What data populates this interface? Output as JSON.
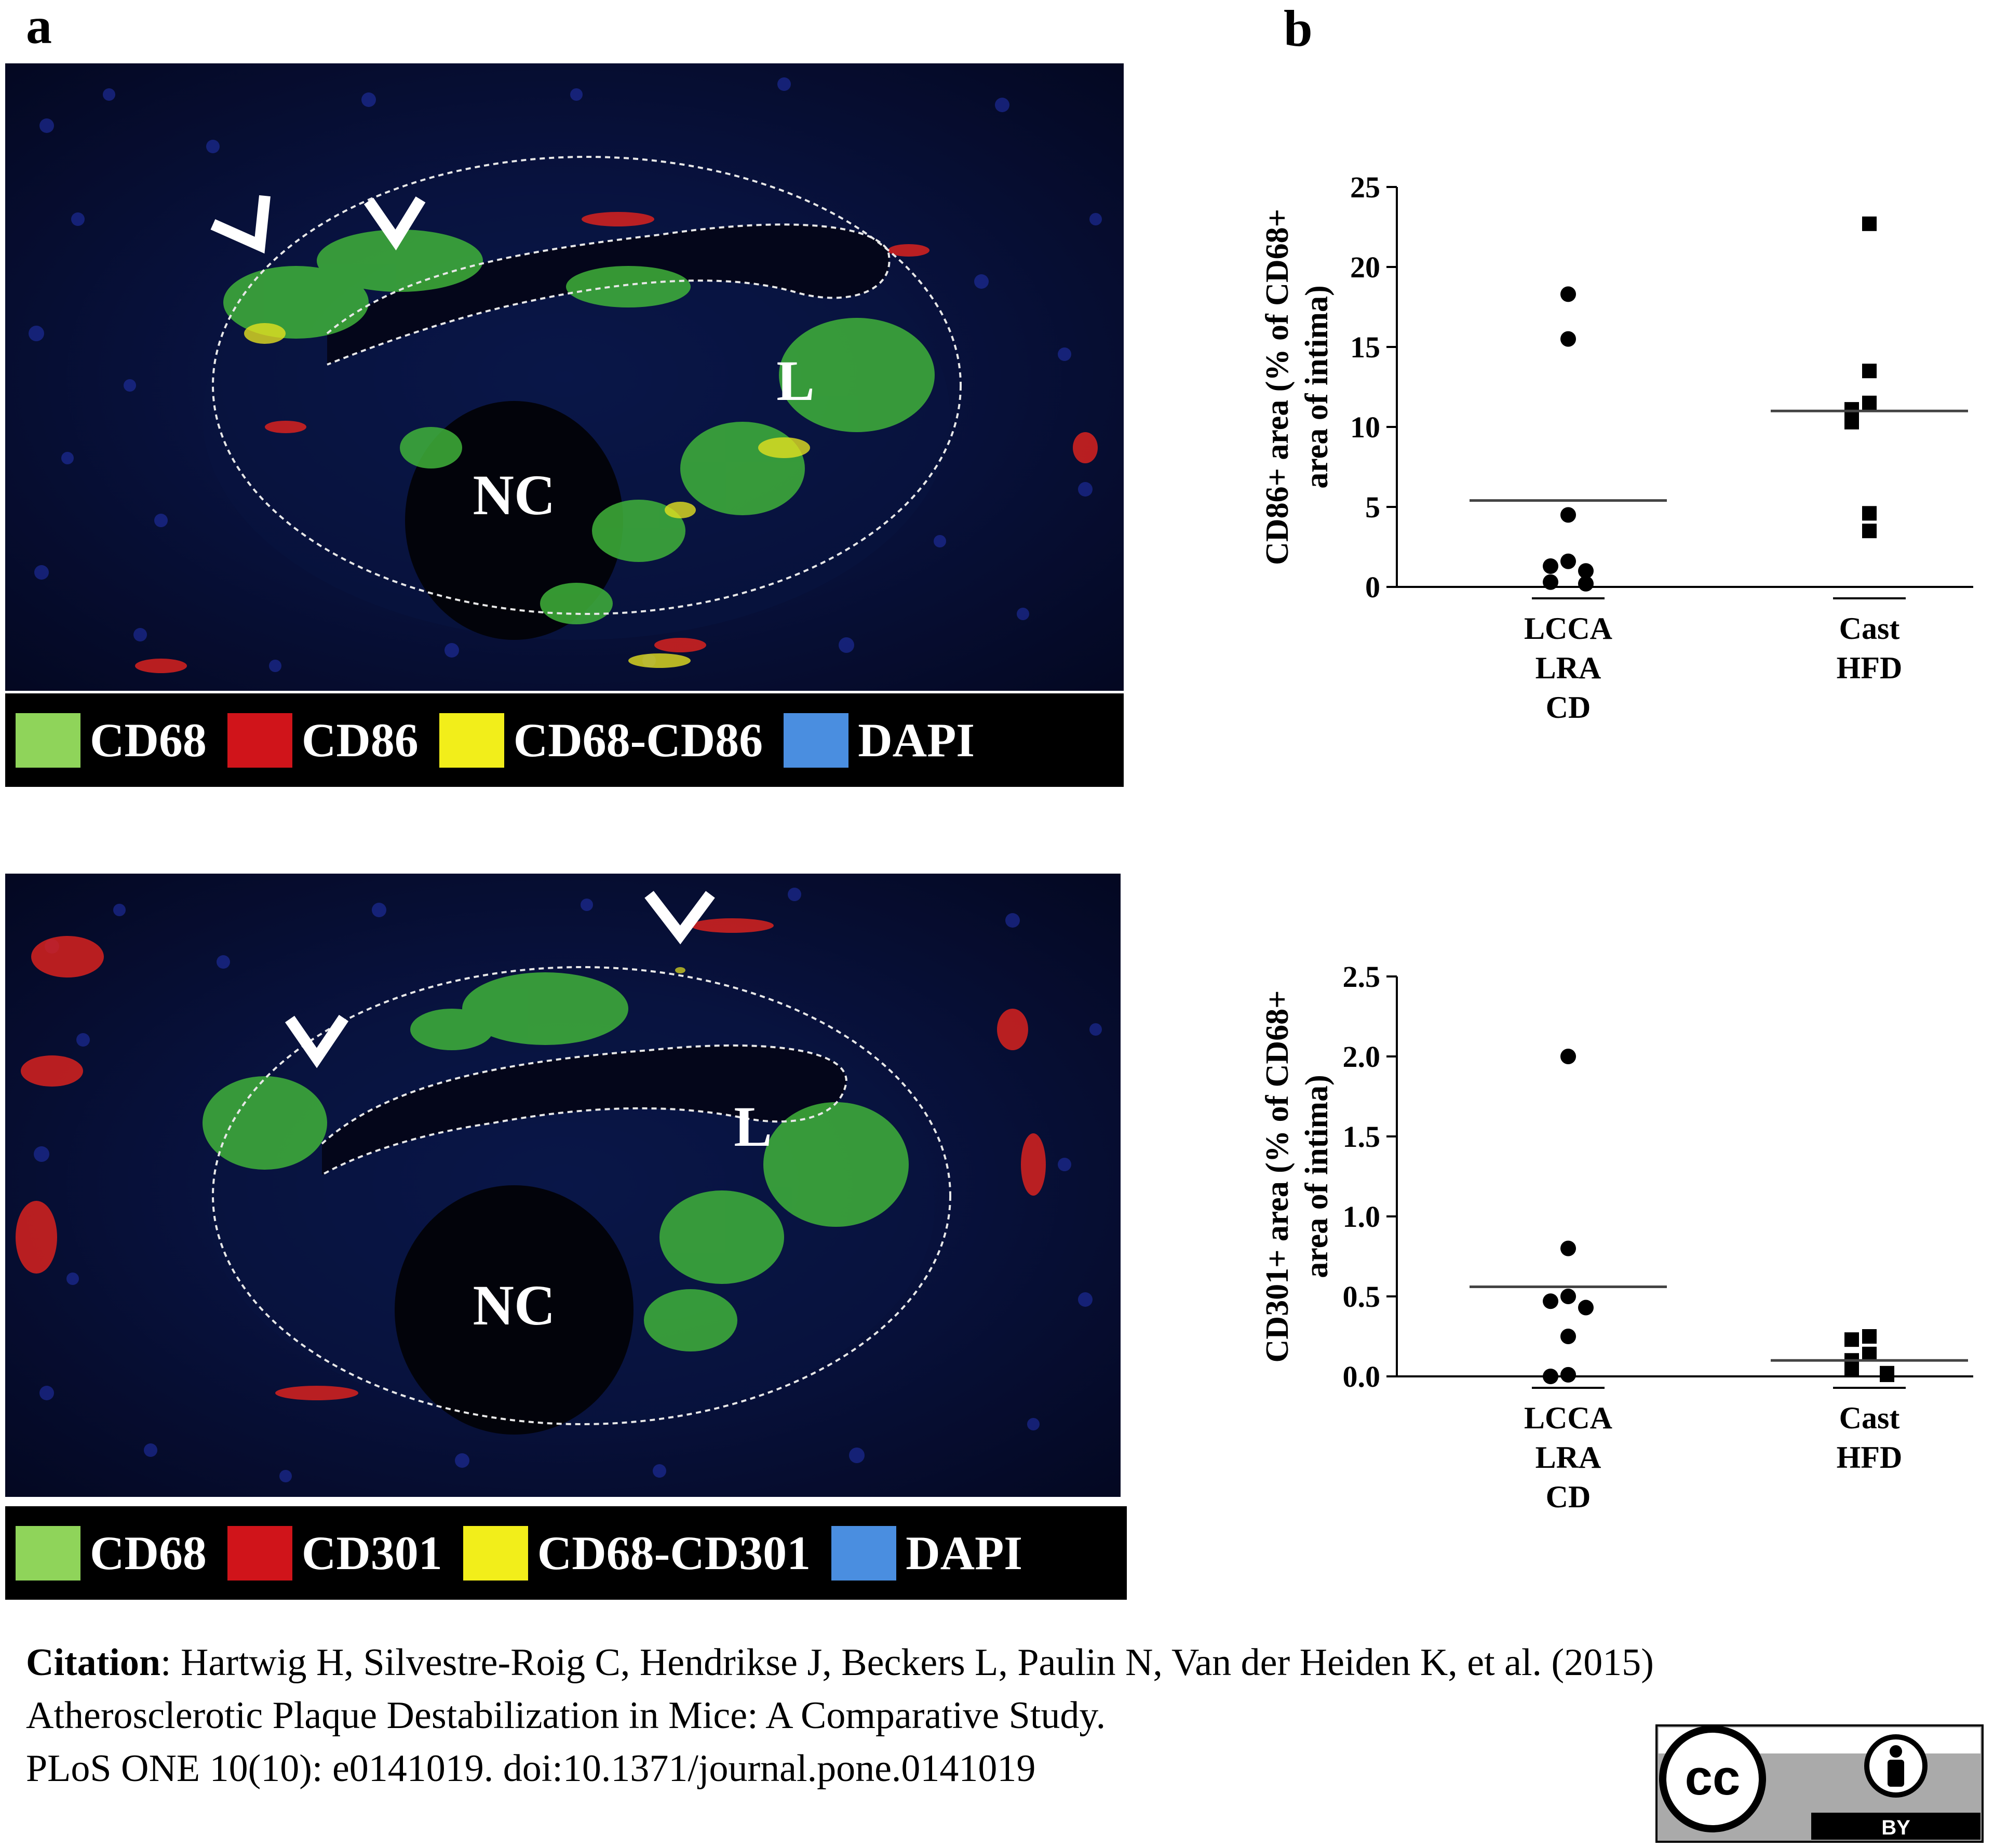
{
  "figure": {
    "panel_a_label": "a",
    "panel_b_label": "b"
  },
  "micrographs": [
    {
      "labels": {
        "lumen": "L",
        "necrotic_core": "NC"
      },
      "legend": [
        {
          "label": "CD68",
          "color": "#8fd45a"
        },
        {
          "label": "CD86",
          "color": "#d0141a"
        },
        {
          "label": "CD68-CD86",
          "color": "#f2ee1a"
        },
        {
          "label": "DAPI",
          "color": "#4a8ee0"
        }
      ]
    },
    {
      "labels": {
        "lumen": "L",
        "necrotic_core": "NC"
      },
      "legend": [
        {
          "label": "CD68",
          "color": "#8fd45a"
        },
        {
          "label": "CD301",
          "color": "#d0141a"
        },
        {
          "label": "CD68-CD301",
          "color": "#f2ee1a"
        },
        {
          "label": "DAPI",
          "color": "#4a8ee0"
        }
      ]
    }
  ],
  "chart_data": [
    {
      "type": "scatter",
      "ylabel_line1": "CD86+ area (% of CD68+",
      "ylabel_line2": "area of intima)",
      "ylim": [
        0,
        25
      ],
      "yticks": [
        "0",
        "5",
        "10",
        "15",
        "20",
        "25"
      ],
      "categories": [
        [
          "LCCA",
          "LRA",
          "CD"
        ],
        [
          "Cast",
          "HFD"
        ]
      ],
      "series": [
        {
          "marker": "circle",
          "points": [
            18.3,
            15.5,
            4.5,
            1.6,
            1.3,
            1.0,
            0.3,
            0.2
          ],
          "mean": 5.4
        },
        {
          "marker": "square",
          "points": [
            22.7,
            13.5,
            11.5,
            11.1,
            10.3,
            4.6,
            3.5
          ],
          "mean": 11.0
        }
      ]
    },
    {
      "type": "scatter",
      "ylabel_line1": "CD301+ area (% of CD68+",
      "ylabel_line2": "area of intima)",
      "ylim": [
        0,
        2.5
      ],
      "yticks": [
        "0.0",
        "0.5",
        "1.0",
        "1.5",
        "2.0",
        "2.5"
      ],
      "categories": [
        [
          "LCCA",
          "LRA",
          "CD"
        ],
        [
          "Cast",
          "HFD"
        ]
      ],
      "series": [
        {
          "marker": "circle",
          "points": [
            2.0,
            0.8,
            0.5,
            0.47,
            0.43,
            0.25,
            0.01,
            0.0
          ],
          "mean": 0.56
        },
        {
          "marker": "square",
          "points": [
            0.25,
            0.23,
            0.14,
            0.1,
            0.04,
            0.02,
            0.01
          ],
          "mean": 0.1
        }
      ]
    }
  ],
  "citation": {
    "label": "Citation",
    "authors": ": Hartwig H, Silvestre-Roig C, Hendrikse J, Beckers L, Paulin N, Van der Heiden K, et al. (2015)",
    "title": "Atherosclerotic Plaque Destabilization in Mice: A Comparative Study.",
    "journal": "PLoS ONE 10(10): e0141019. doi:10.1371/journal.pone.0141019"
  },
  "license": {
    "cc_text": "cc",
    "by_text": "BY"
  }
}
